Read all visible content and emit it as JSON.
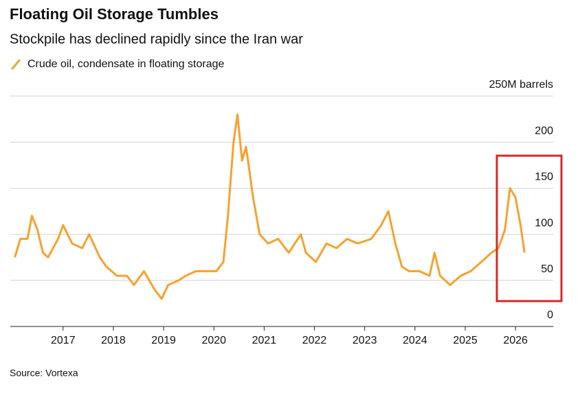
{
  "chart_data": {
    "type": "line",
    "title": "Floating Oil Storage Tumbles",
    "subtitle": "Stockpile has declined rapidly since the Iran war",
    "source": "Source: Vortexa",
    "grid": true,
    "xlim": [
      2015.95,
      2026.75
    ],
    "xticks": [
      2017,
      2018,
      2019,
      2020,
      2021,
      2022,
      2023,
      2024,
      2025,
      2026
    ],
    "ylim": [
      0,
      250
    ],
    "yticks": [
      0,
      50,
      100,
      150,
      200,
      {
        "value": 250,
        "label": "250M barrels"
      }
    ],
    "x": [
      2016.04,
      2016.15,
      2016.29,
      2016.38,
      2016.49,
      2016.6,
      2016.7,
      2016.9,
      2017.0,
      2017.18,
      2017.38,
      2017.52,
      2017.73,
      2017.86,
      2018.07,
      2018.27,
      2018.41,
      2018.61,
      2018.82,
      2018.96,
      2019.09,
      2019.3,
      2019.44,
      2019.64,
      2019.85,
      2020.05,
      2020.19,
      2020.28,
      2020.39,
      2020.47,
      2020.56,
      2020.64,
      2020.78,
      2020.91,
      2021.08,
      2021.28,
      2021.49,
      2021.73,
      2021.83,
      2022.03,
      2022.24,
      2022.44,
      2022.65,
      2022.86,
      2023.13,
      2023.33,
      2023.47,
      2023.61,
      2023.74,
      2023.88,
      2024.09,
      2024.29,
      2024.39,
      2024.5,
      2024.7,
      2024.91,
      2025.11,
      2025.32,
      2025.52,
      2025.66,
      2025.79,
      2025.89,
      2026.0,
      2026.1,
      2026.18
    ],
    "series": [
      {
        "name": "Crude oil, condensate in floating storage",
        "color": "#f7a12d",
        "values": [
          75,
          95,
          95,
          120,
          105,
          80,
          75,
          95,
          110,
          90,
          85,
          100,
          75,
          65,
          55,
          55,
          45,
          60,
          40,
          30,
          45,
          50,
          55,
          60,
          60,
          60,
          70,
          120,
          200,
          230,
          180,
          195,
          140,
          100,
          90,
          95,
          80,
          100,
          80,
          70,
          90,
          85,
          95,
          90,
          95,
          110,
          125,
          90,
          65,
          60,
          60,
          55,
          80,
          55,
          45,
          55,
          60,
          70,
          80,
          85,
          105,
          150,
          140,
          110,
          80
        ]
      }
    ]
  }
}
